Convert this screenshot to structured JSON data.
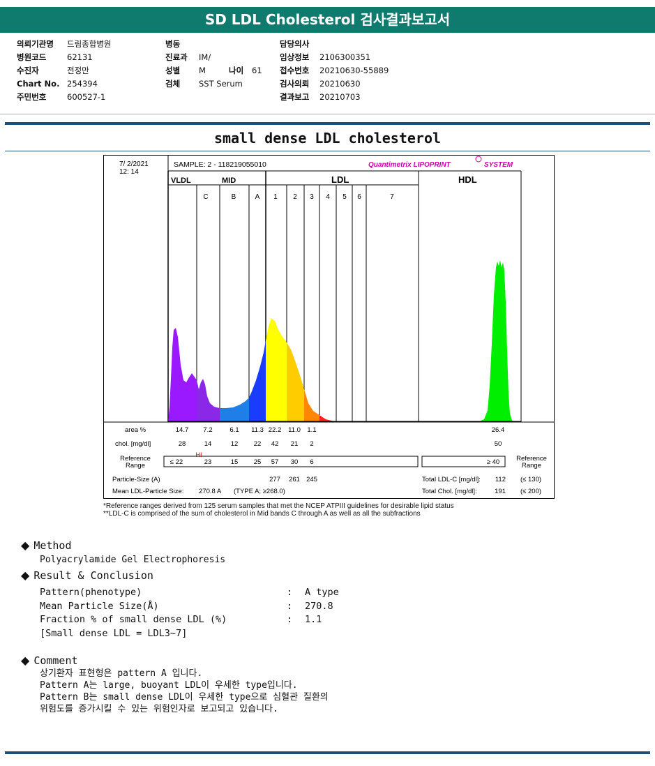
{
  "report": {
    "title": "SD LDL Cholesterol 검사결과보고서",
    "subtitle": "small dense LDL cholesterol"
  },
  "patient": {
    "col1": [
      {
        "label": "의뢰기관명",
        "value": "드림종합병원"
      },
      {
        "label": "병원코드",
        "value": "62131"
      },
      {
        "label": "수진자",
        "value": "전정만"
      },
      {
        "label": "Chart No.",
        "value": "254394"
      },
      {
        "label": "주민번호",
        "value": "600527-1"
      }
    ],
    "col2": [
      {
        "label": "병동",
        "value": ""
      },
      {
        "label": "진료과",
        "value": "IM/"
      },
      {
        "label": "성별",
        "value": "M"
      },
      {
        "label": "검체",
        "value": "SST Serum"
      }
    ],
    "age_label": "나이",
    "age_value": "61",
    "col3": [
      {
        "label": "담당의사",
        "value": ""
      },
      {
        "label": "임상정보",
        "value": "2106300351"
      },
      {
        "label": "접수번호",
        "value": "20210630-55889"
      },
      {
        "label": "검사의뢰",
        "value": "20210630"
      },
      {
        "label": "결과보고",
        "value": "20210703"
      }
    ]
  },
  "chart": {
    "date": "7/  2/2021",
    "time": "12:  14",
    "sample": "SAMPLE:    2 - 118219055010",
    "brand": "Quantimetrix LIPOPRINT",
    "brand2": "SYSTEM",
    "groups": {
      "vldl": "VLDL",
      "mid": "MID",
      "ldl": "LDL",
      "hdl": "HDL"
    },
    "bands": [
      "C",
      "B",
      "A",
      "1",
      "2",
      "3",
      "4",
      "5",
      "6",
      "7"
    ],
    "row_labels": {
      "area": "area %",
      "chol": "chol. [mg/dl]",
      "ref1": "Reference",
      "ref2": "Range",
      "psize": "Particle-Size (A)",
      "mean_label": "Mean LDL-Particle Size:",
      "mean_value": "270.8  A",
      "mean_type": "(TYPE A; ≥268.0)"
    },
    "hi_flag": "HI",
    "right_ref1": "Reference",
    "right_ref2": "Range",
    "total_ldl_label": "Total LDL-C  [mg/dl]:",
    "total_ldl_value": "112",
    "total_ldl_ref": "(≤ 130)",
    "total_chol_label": "Total Chol.  [mg/dl]:",
    "total_chol_value": "191",
    "total_chol_ref": "(≤ 200)"
  },
  "chart_data": {
    "type": "table",
    "columns": [
      "VLDL",
      "C",
      "B",
      "A",
      "1",
      "2",
      "3",
      "HDL"
    ],
    "area_percent": [
      "14.7",
      "7.2",
      "6.1",
      "11.3",
      "22.2",
      "11.0",
      "1.1",
      "26.4"
    ],
    "chol_mg_dl": [
      "28",
      "14",
      "12",
      "22",
      "42",
      "21",
      "2",
      "50"
    ],
    "reference_range": [
      "≤ 22",
      "23",
      "15",
      "25",
      "57",
      "30",
      "6",
      "≥ 40"
    ],
    "particle_size": [
      "277",
      "261",
      "245"
    ],
    "series": [
      {
        "band": "VLDL",
        "color": "#9b19ff"
      },
      {
        "band": "C",
        "color": "#8b27e6"
      },
      {
        "band": "B",
        "color": "#1f7fe6"
      },
      {
        "band": "A",
        "color": "#1a3cff"
      },
      {
        "band": "1",
        "color": "#ffff00"
      },
      {
        "band": "2",
        "color": "#ffcc00"
      },
      {
        "band": "3",
        "color": "#ff8800"
      },
      {
        "band": "4",
        "color": "#ff2222"
      },
      {
        "band": "HDL",
        "color": "#00ee00"
      }
    ]
  },
  "notes": [
    "*Reference ranges derived from 125 serum samples that met the NCEP ATPIII guidelines for desirable lipid status",
    "**LDL-C is comprised of the sum of cholesterol in Mid bands C through A as well as all the subfractions"
  ],
  "method": {
    "heading": "Method",
    "text": "Polyacrylamide Gel Electrophoresis"
  },
  "result": {
    "heading": "Result & Conclusion",
    "rows": [
      {
        "label": "Pattern(phenotype)",
        "value": "A type"
      },
      {
        "label": "Mean Particle Size(Å)",
        "value": "270.8"
      },
      {
        "label": "Fraction % of small dense LDL (%)",
        "value": "1.1"
      }
    ],
    "colon": ":",
    "footnote": "[Small dense LDL = LDL3~7]"
  },
  "comment": {
    "heading": "Comment",
    "lines": [
      "상기환자 표현형은 pattern A 입니다.",
      "Pattern A는 large, buoyant LDL이 우세한 type입니다.",
      "Pattern B는 small dense LDL이 우세한 type으로 심혈관 질환의",
      "위험도를 증가시킬 수 있는 위험인자로 보고되고 있습니다."
    ]
  }
}
